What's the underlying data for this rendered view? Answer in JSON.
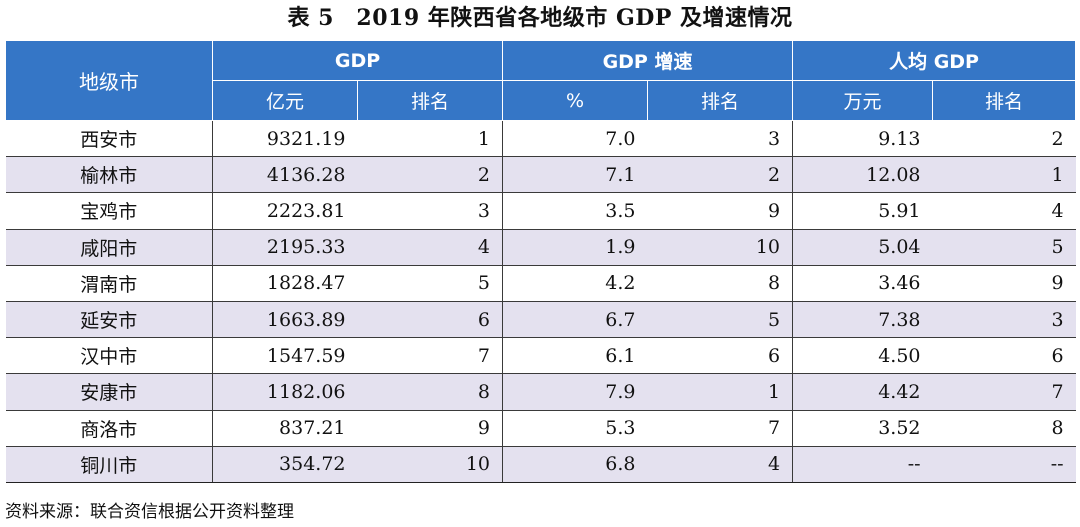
{
  "title": "表 5　2019 年陕西省各地级市 GDP 及增速情况",
  "headers": {
    "city": "地级市",
    "groups": [
      "GDP",
      "GDP 增速",
      "人均 GDP"
    ],
    "sub": [
      "亿元",
      "排名",
      "%",
      "排名",
      "万元",
      "排名"
    ]
  },
  "rows": [
    [
      "西安市",
      "9321.19",
      "1",
      "7.0",
      "3",
      "9.13",
      "2"
    ],
    [
      "榆林市",
      "4136.28",
      "2",
      "7.1",
      "2",
      "12.08",
      "1"
    ],
    [
      "宝鸡市",
      "2223.81",
      "3",
      "3.5",
      "9",
      "5.91",
      "4"
    ],
    [
      "咸阳市",
      "2195.33",
      "4",
      "1.9",
      "10",
      "5.04",
      "5"
    ],
    [
      "渭南市",
      "1828.47",
      "5",
      "4.2",
      "8",
      "3.46",
      "9"
    ],
    [
      "延安市",
      "1663.89",
      "6",
      "6.7",
      "5",
      "7.38",
      "3"
    ],
    [
      "汉中市",
      "1547.59",
      "7",
      "6.1",
      "6",
      "4.50",
      "6"
    ],
    [
      "安康市",
      "1182.06",
      "8",
      "7.9",
      "1",
      "4.42",
      "7"
    ],
    [
      "商洛市",
      "837.21",
      "9",
      "5.3",
      "7",
      "3.52",
      "8"
    ],
    [
      "铜川市",
      "354.72",
      "10",
      "6.8",
      "4",
      "--",
      "--"
    ]
  ],
  "source": "资料来源：联合资信根据公开资料整理"
}
